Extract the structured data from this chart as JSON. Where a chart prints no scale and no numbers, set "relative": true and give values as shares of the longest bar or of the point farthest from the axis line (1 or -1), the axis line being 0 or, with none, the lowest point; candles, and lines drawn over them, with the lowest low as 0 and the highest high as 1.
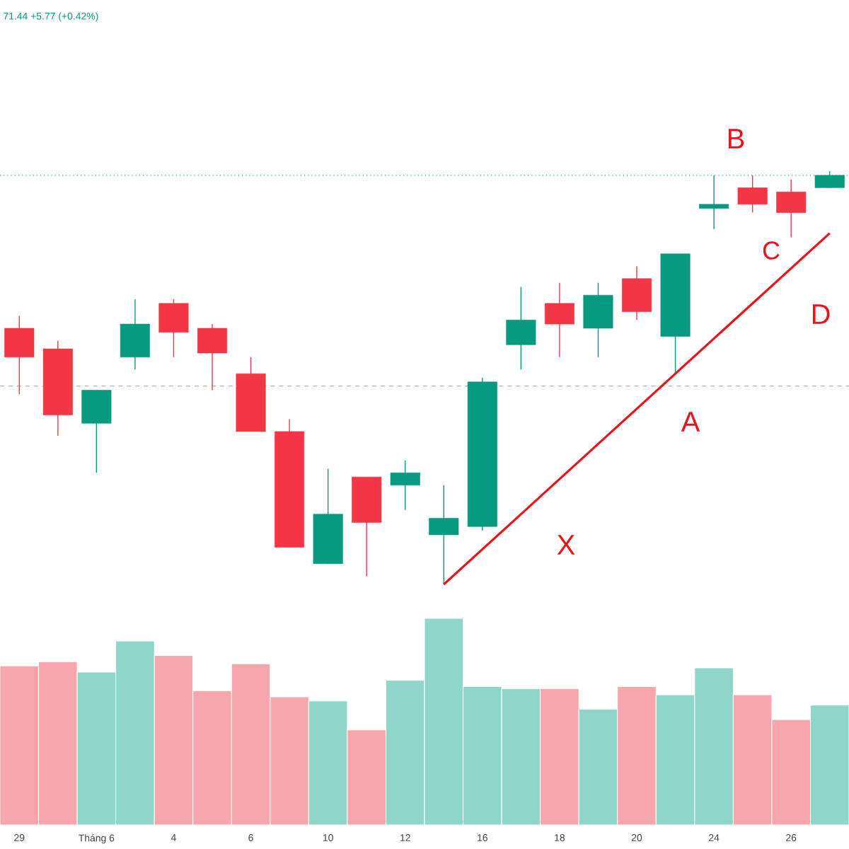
{
  "chart_data": [
    {
      "type": "candlestick",
      "relative": true,
      "categories": [
        null,
        null,
        null,
        null,
        null,
        null,
        null,
        null,
        null,
        null,
        null,
        null,
        null,
        null,
        null,
        null,
        null,
        null,
        null,
        null,
        null,
        null
      ],
      "ohlc": [
        [
          0.62,
          0.65,
          0.46,
          0.55
        ],
        [
          0.57,
          0.59,
          0.36,
          0.41
        ],
        [
          0.39,
          0.47,
          0.27,
          0.47
        ],
        [
          0.55,
          0.69,
          0.52,
          0.63
        ],
        [
          0.68,
          0.69,
          0.55,
          0.61
        ],
        [
          0.62,
          0.63,
          0.47,
          0.56
        ],
        [
          0.51,
          0.55,
          0.37,
          0.37
        ],
        [
          0.37,
          0.4,
          0.09,
          0.09
        ],
        [
          0.05,
          0.28,
          0.05,
          0.17
        ],
        [
          0.26,
          0.26,
          0.02,
          0.15
        ],
        [
          0.24,
          0.3,
          0.18,
          0.27
        ],
        [
          0.12,
          0.24,
          0.0,
          0.16
        ],
        [
          0.14,
          0.5,
          0.13,
          0.49
        ],
        [
          0.58,
          0.72,
          0.52,
          0.64
        ],
        [
          0.68,
          0.73,
          0.55,
          0.63
        ],
        [
          0.62,
          0.73,
          0.55,
          0.7
        ],
        [
          0.74,
          0.77,
          0.64,
          0.66
        ],
        [
          0.6,
          0.8,
          0.51,
          0.8
        ],
        [
          0.91,
          0.99,
          0.86,
          0.92
        ],
        [
          0.96,
          0.99,
          0.9,
          0.92
        ],
        [
          0.95,
          0.98,
          0.84,
          0.9
        ],
        [
          0.96,
          1.0,
          0.96,
          0.99
        ]
      ],
      "colors": [
        "#f23645",
        "#f23645",
        "#089981",
        "#089981",
        "#f23645",
        "#f23645",
        "#f23645",
        "#f23645",
        "#089981",
        "#f23645",
        "#089981",
        "#089981",
        "#089981",
        "#089981",
        "#f23645",
        "#089981",
        "#f23645",
        "#089981",
        "#089981",
        "#f23645",
        "#f23645",
        "#089981"
      ],
      "series": [
        {
          "type": "line",
          "values": [
            null,
            null,
            null,
            null,
            null,
            null,
            null,
            null,
            null,
            null,
            null,
            0.0,
            null,
            null,
            null,
            null,
            null,
            null,
            null,
            null,
            null,
            0.85
          ],
          "color": "#e8141c"
        }
      ],
      "ref_lines": [
        {
          "axis": "y",
          "value": 0.99,
          "color": "#26a69a",
          "line_style": "dotted"
        },
        {
          "axis": "y",
          "value": 0.48,
          "color": "#b2b5be",
          "line_style": "dashed"
        }
      ],
      "annotations": [
        "71.44 +5.77 (+0.42%)",
        "X",
        "A",
        "B",
        "C",
        "D"
      ]
    },
    {
      "type": "bar",
      "relative": true,
      "categories": [
        "29",
        null,
        "Tháng 6",
        null,
        "4",
        null,
        "6",
        null,
        "10",
        null,
        "12",
        null,
        "16",
        null,
        "18",
        null,
        "20",
        null,
        "24",
        null,
        "26",
        null
      ],
      "values": [
        0.77,
        0.79,
        0.74,
        0.89,
        0.82,
        0.65,
        0.78,
        0.62,
        0.6,
        0.46,
        0.7,
        1.0,
        0.67,
        0.66,
        0.66,
        0.56,
        0.67,
        0.63,
        0.76,
        0.63,
        0.51,
        0.58
      ],
      "colors": [
        "#f7a6ad",
        "#f7a6ad",
        "#8fd5c9",
        "#8fd5c9",
        "#f7a6ad",
        "#f7a6ad",
        "#f7a6ad",
        "#f7a6ad",
        "#8fd5c9",
        "#f7a6ad",
        "#8fd5c9",
        "#8fd5c9",
        "#8fd5c9",
        "#8fd5c9",
        "#f7a6ad",
        "#8fd5c9",
        "#f7a6ad",
        "#8fd5c9",
        "#8fd5c9",
        "#f7a6ad",
        "#f7a6ad",
        "#8fd5c9"
      ]
    }
  ]
}
